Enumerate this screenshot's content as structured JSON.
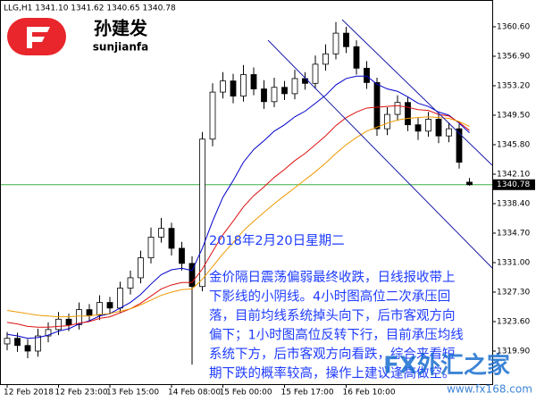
{
  "chart_data": {
    "type": "candlestick",
    "header": "LLG,H1 1341.10 1341.62 1340.65 1340.78",
    "logo": {
      "name": "孙建发",
      "pinyin": "sunjianfa"
    },
    "categories": [
      "12 Feb 2018",
      null,
      null,
      null,
      null,
      "12 Feb 23:00",
      null,
      null,
      null,
      null,
      "13 Feb 15:00",
      null,
      null,
      null,
      null,
      null,
      "14 Feb 08:00",
      null,
      null,
      null,
      null,
      "15 Feb 00:00",
      null,
      null,
      null,
      null,
      null,
      "15 Feb 17:00",
      null,
      null,
      null,
      null,
      null,
      "16 Feb 10:00",
      null,
      null,
      null,
      null,
      null,
      null,
      null,
      null,
      null,
      null,
      null,
      null
    ],
    "open": [
      1320.8,
      1321.5,
      1320.6,
      1319.9,
      1321.8,
      1322.6,
      1323.9,
      1323.2,
      1325.1,
      1324.4,
      1326.0,
      1325.3,
      1327.8,
      1329.1,
      1331.6,
      1334.2,
      1335.3,
      1332.8,
      1330.9,
      1328.0,
      1346.5,
      1352.4,
      1353.8,
      1351.9,
      1354.6,
      1352.8,
      1351.2,
      1353.0,
      1352.2,
      1354.1,
      1353.5,
      1355.9,
      1357.2,
      1359.8,
      1358.1,
      1355.4,
      1353.6,
      1347.8,
      1349.6,
      1351.1,
      1348.3,
      1347.5,
      1349.0,
      1346.9,
      1347.8,
      1341.1
    ],
    "high": [
      1322.3,
      1322.2,
      1321.4,
      1322.7,
      1323.5,
      1324.8,
      1324.6,
      1326.0,
      1325.8,
      1326.9,
      1326.7,
      1328.6,
      1330.0,
      1332.5,
      1335.4,
      1336.6,
      1336.0,
      1333.6,
      1331.8,
      1347.4,
      1353.5,
      1354.9,
      1354.7,
      1355.8,
      1355.5,
      1353.9,
      1354.2,
      1353.8,
      1355.2,
      1354.9,
      1357.0,
      1358.4,
      1361.2,
      1360.6,
      1358.9,
      1356.3,
      1354.2,
      1350.5,
      1352.0,
      1351.8,
      1349.2,
      1349.9,
      1349.7,
      1348.6,
      1348.4,
      1341.62
    ],
    "low": [
      1320.0,
      1319.8,
      1319.0,
      1319.2,
      1321.0,
      1321.9,
      1322.4,
      1322.6,
      1323.6,
      1323.8,
      1324.5,
      1324.7,
      1327.0,
      1328.4,
      1330.9,
      1333.5,
      1331.9,
      1330.0,
      1318.2,
      1327.4,
      1345.6,
      1351.6,
      1351.0,
      1351.2,
      1352.0,
      1350.3,
      1350.5,
      1351.4,
      1351.5,
      1352.7,
      1352.8,
      1355.1,
      1356.5,
      1357.3,
      1354.6,
      1352.8,
      1346.9,
      1347.0,
      1348.8,
      1347.5,
      1346.4,
      1346.8,
      1346.0,
      1346.1,
      1342.8,
      1340.65
    ],
    "close": [
      1321.5,
      1320.6,
      1319.9,
      1321.8,
      1322.6,
      1323.9,
      1323.2,
      1325.1,
      1324.4,
      1326.0,
      1325.3,
      1327.8,
      1329.1,
      1331.6,
      1334.2,
      1335.3,
      1332.8,
      1330.9,
      1328.0,
      1346.5,
      1352.4,
      1353.8,
      1351.9,
      1354.6,
      1352.8,
      1351.2,
      1353.0,
      1352.2,
      1354.1,
      1353.5,
      1355.9,
      1357.2,
      1359.8,
      1358.1,
      1355.4,
      1353.6,
      1347.8,
      1349.6,
      1351.1,
      1348.3,
      1347.5,
      1349.0,
      1346.9,
      1347.8,
      1343.6,
      1340.78
    ],
    "series": [
      {
        "color": "#0000cc",
        "values": [
          1322.0,
          1321.8,
          1321.5,
          1321.6,
          1321.9,
          1322.4,
          1322.7,
          1323.3,
          1323.7,
          1324.3,
          1324.6,
          1325.3,
          1326.0,
          1327.0,
          1328.3,
          1329.5,
          1330.1,
          1330.3,
          1330.0,
          1332.8,
          1336.2,
          1339.2,
          1341.3,
          1343.6,
          1345.2,
          1346.3,
          1347.5,
          1348.3,
          1349.3,
          1350.0,
          1351.0,
          1352.0,
          1353.3,
          1354.1,
          1354.4,
          1354.4,
          1353.4,
          1352.8,
          1352.5,
          1351.8,
          1351.0,
          1350.6,
          1349.9,
          1349.5,
          1348.5,
          1347.3
        ]
      },
      {
        "color": "#dd1111",
        "values": [
          1323.5,
          1323.3,
          1323.0,
          1322.9,
          1322.9,
          1323.0,
          1323.1,
          1323.4,
          1323.6,
          1324.0,
          1324.2,
          1324.7,
          1325.2,
          1325.9,
          1326.8,
          1327.7,
          1328.2,
          1328.5,
          1328.5,
          1330.2,
          1332.4,
          1334.5,
          1336.2,
          1338.0,
          1339.4,
          1340.5,
          1341.7,
          1342.7,
          1343.8,
          1344.7,
          1345.8,
          1346.9,
          1348.2,
          1349.2,
          1349.9,
          1350.4,
          1350.5,
          1350.6,
          1350.7,
          1350.5,
          1350.2,
          1350.1,
          1349.6,
          1349.4,
          1348.6,
          1347.6
        ]
      },
      {
        "color": "#ee9900",
        "values": [
          1325.0,
          1324.8,
          1324.6,
          1324.4,
          1324.3,
          1324.2,
          1324.2,
          1324.3,
          1324.3,
          1324.5,
          1324.6,
          1324.9,
          1325.2,
          1325.7,
          1326.3,
          1326.9,
          1327.3,
          1327.6,
          1327.7,
          1328.9,
          1330.5,
          1332.1,
          1333.5,
          1335.0,
          1336.2,
          1337.3,
          1338.4,
          1339.4,
          1340.4,
          1341.4,
          1342.4,
          1343.5,
          1344.7,
          1345.8,
          1346.7,
          1347.5,
          1348.0,
          1348.5,
          1348.9,
          1349.1,
          1349.2,
          1349.3,
          1349.2,
          1349.1,
          1348.7,
          1348.1
        ]
      }
    ],
    "current_price": 1340.78,
    "ylim": [
      1315.75,
      1363.96
    ],
    "yticks": [
      {
        "value": 1319.9,
        "label": "1319.90"
      },
      {
        "value": 1323.6,
        "label": "1323.60"
      },
      {
        "value": 1327.3,
        "label": "1327.30"
      },
      {
        "value": 1331.0,
        "label": "1331.00"
      },
      {
        "value": 1334.7,
        "label": "1334.70"
      },
      {
        "value": 1338.4,
        "label": "1338.40"
      },
      {
        "value": 1342.1,
        "label": "1342.10"
      },
      {
        "value": 1345.8,
        "label": "1345.80"
      },
      {
        "value": 1349.5,
        "label": "1349.50"
      },
      {
        "value": 1353.2,
        "label": "1353.20"
      },
      {
        "value": 1356.9,
        "label": "1356.90"
      },
      {
        "value": 1360.6,
        "label": "1360.60"
      }
    ],
    "annotation": {
      "date": "2018年2月20日星期二",
      "lines": [
        "金价隔日震荡偏弱最终收跌，日线报收带上",
        "下影线的小阴线。4小时图高位二次承压回",
        "落，目前均线系统掉头向下，后市客观方向",
        "偏下；1小时图高位反转下行，目前承压均线",
        "系统下方，后市客观方向看跌，综合来看短",
        "期下跌的概率较高，操作上建议逢高做空。"
      ]
    },
    "watermark": {
      "brand": "FX外汇之家",
      "url": "www.fx168.com"
    }
  }
}
